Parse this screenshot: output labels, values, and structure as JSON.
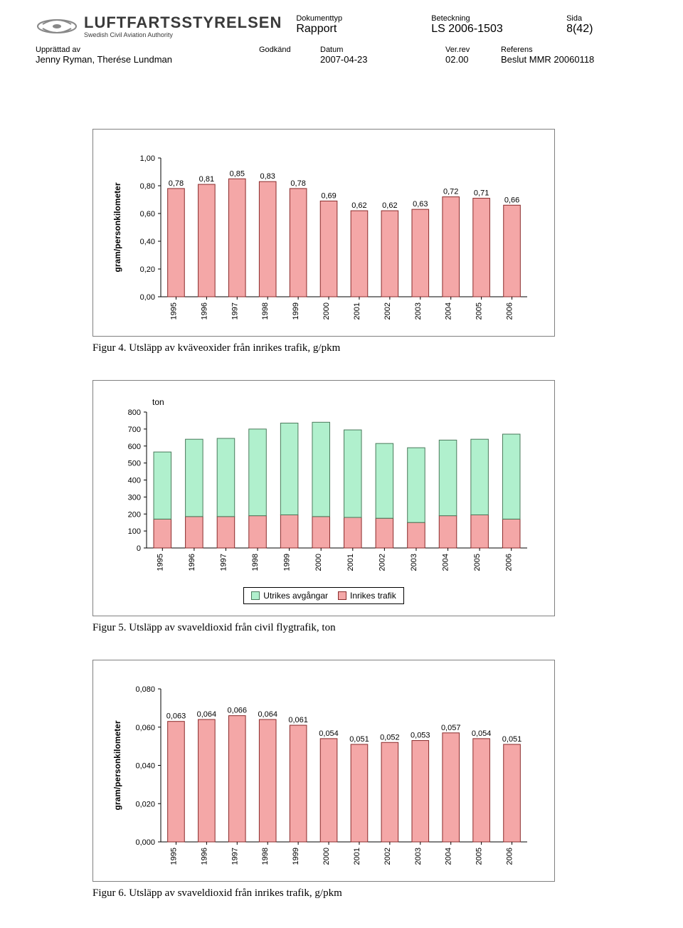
{
  "header": {
    "logo_main": "LUFTFARTSSTYRELSEN",
    "logo_sub": "Swedish Civil Aviation Authority",
    "doctype_label": "Dokumenttyp",
    "doctype_value": "Rapport",
    "ref_label": "Beteckning",
    "ref_value": "LS 2006-1503",
    "page_label": "Sida",
    "page_value": "8(42)",
    "author_label": "Upprättad av",
    "author_value": "Jenny Ryman, Therése Lundman",
    "approved_label": "Godkänd",
    "approved_value": "",
    "date_label": "Datum",
    "date_value": "2007-04-23",
    "ver_label": "Ver.rev",
    "ver_value": "02.00",
    "reference_label": "Referens",
    "reference_value": "Beslut MMR 20060118"
  },
  "years": [
    "1995",
    "1996",
    "1997",
    "1998",
    "1999",
    "2000",
    "2001",
    "2002",
    "2003",
    "2004",
    "2005",
    "2006"
  ],
  "chart1": {
    "type": "bar",
    "y_label": "gram/personkilometer",
    "ylim": [
      0,
      1.0
    ],
    "ytick_step": 0.2,
    "yticks": [
      "0,00",
      "0,20",
      "0,40",
      "0,60",
      "0,80",
      "1,00"
    ],
    "values": [
      0.78,
      0.81,
      0.85,
      0.83,
      0.78,
      0.69,
      0.62,
      0.62,
      0.63,
      0.72,
      0.71,
      0.66
    ],
    "value_labels": [
      "0,78",
      "0,81",
      "0,85",
      "0,83",
      "0,78",
      "0,69",
      "0,62",
      "0,62",
      "0,63",
      "0,72",
      "0,71",
      "0,66"
    ],
    "bar_fill": "#f4a7a7",
    "bar_stroke": "#8a2b2b",
    "bg": "#ffffff",
    "label_fontsize": 11,
    "axis_fontsize": 12,
    "caption": "Figur 4. Utsläpp av kväveoxider från inrikes trafik, g/pkm"
  },
  "chart2": {
    "type": "stacked-bar",
    "y_unit": "ton",
    "ylim": [
      0,
      800
    ],
    "ytick_step": 100,
    "yticks": [
      "0",
      "100",
      "200",
      "300",
      "400",
      "500",
      "600",
      "700",
      "800"
    ],
    "inrikes": [
      170,
      185,
      185,
      190,
      195,
      185,
      180,
      175,
      150,
      190,
      195,
      170
    ],
    "utrikes": [
      395,
      455,
      460,
      510,
      540,
      555,
      515,
      440,
      440,
      445,
      445,
      500
    ],
    "color_utrikes": "#b0f0cd",
    "color_inrikes": "#f4a7a7",
    "stroke": "#4a7a5b",
    "stroke_inrikes": "#8a2b2b",
    "legend_utrikes": "Utrikes avgångar",
    "legend_inrikes": "Inrikes trafik",
    "label_fontsize": 11,
    "caption": "Figur 5. Utsläpp av svaveldioxid från civil flygtrafik, ton"
  },
  "chart3": {
    "type": "bar",
    "y_label": "gram/personkilometer",
    "ylim": [
      0,
      0.08
    ],
    "ytick_step": 0.02,
    "yticks": [
      "0,000",
      "0,020",
      "0,040",
      "0,060",
      "0,080"
    ],
    "values": [
      0.063,
      0.064,
      0.066,
      0.064,
      0.061,
      0.054,
      0.051,
      0.052,
      0.053,
      0.057,
      0.054,
      0.051
    ],
    "value_labels": [
      "0,063",
      "0,064",
      "0,066",
      "0,064",
      "0,061",
      "0,054",
      "0,051",
      "0,052",
      "0,053",
      "0,057",
      "0,054",
      "0,051"
    ],
    "bar_fill": "#f4a7a7",
    "bar_stroke": "#8a2b2b",
    "label_fontsize": 11,
    "caption": "Figur 6. Utsläpp av svaveldioxid från inrikes trafik, g/pkm"
  }
}
